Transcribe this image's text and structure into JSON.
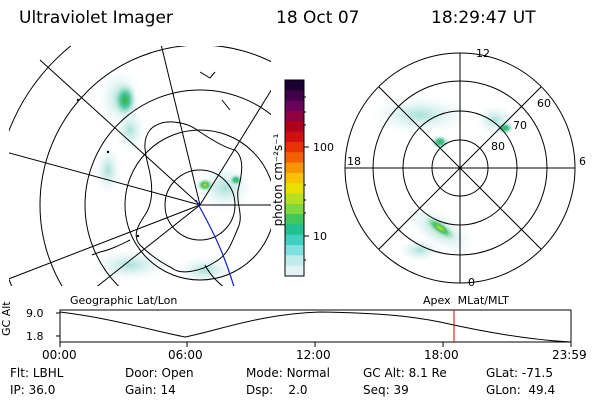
{
  "header": {
    "title": "Ultraviolet Imager",
    "date": "18 Oct 07",
    "time": "18:29:47 UT"
  },
  "left_panel_label": "Geographic Lat/Lon",
  "right_panel_label": "Apex  MLat/MLT",
  "colorbar": {
    "unit_label": "photon cm⁻²s⁻¹",
    "ticks": [
      "100",
      "10"
    ],
    "colors": [
      "#1a0033",
      "#40004a",
      "#6a0058",
      "#8e0040",
      "#b0001e",
      "#d01010",
      "#e83000",
      "#f26000",
      "#f79500",
      "#f7c200",
      "#e8e000",
      "#b8e020",
      "#80d840",
      "#40c860",
      "#20c090",
      "#40d0c0",
      "#80e0e0",
      "#c0ecec",
      "#e4f4f4"
    ]
  },
  "mlt_labels": {
    "top": "12",
    "left": "18",
    "right": "6",
    "bottom": "0"
  },
  "mlat_labels": [
    "60",
    "70",
    "80"
  ],
  "timeline": {
    "axis_label": "GC Alt",
    "y_ticks": [
      "9.0",
      "1.8"
    ],
    "x_ticks": [
      "00:00",
      "06:00",
      "12:00",
      "18:00",
      "23:59"
    ],
    "marker_color": "#d00000"
  },
  "info": {
    "row1": [
      {
        "k": "Flt:",
        "v": "LBHL"
      },
      {
        "k": "Door:",
        "v": "Open"
      },
      {
        "k": "Mode:",
        "v": "Normal"
      },
      {
        "k": "GC Alt:",
        "v": "8.1 Re"
      },
      {
        "k": "GLat:",
        "v": "-71.5"
      }
    ],
    "row2": [
      {
        "k": "IP:",
        "v": "36.0"
      },
      {
        "k": "Gain:",
        "v": "14"
      },
      {
        "k": "Dsp:",
        "v": "2.0"
      },
      {
        "k": "Seq:",
        "v": "39"
      },
      {
        "k": "GLon:",
        "v": "49.4"
      }
    ]
  }
}
